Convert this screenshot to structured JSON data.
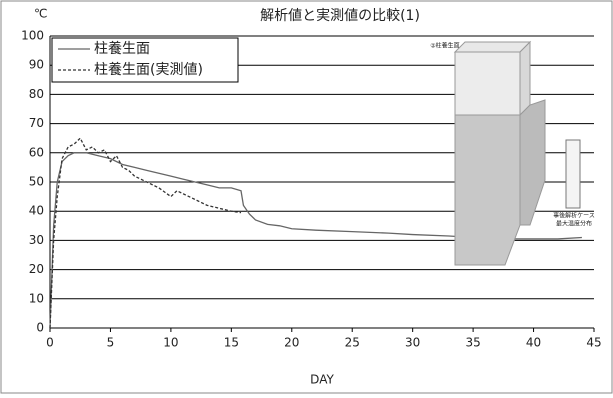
{
  "chart_data": {
    "type": "line",
    "title": "解析値と実測値の比較(1)",
    "ylabel": "℃",
    "xlabel": "DAY",
    "xlim": [
      0,
      45
    ],
    "xticks": [
      0,
      5,
      10,
      15,
      20,
      25,
      30,
      35,
      40,
      45
    ],
    "ylim": [
      0,
      100
    ],
    "yticks": [
      0,
      10,
      20,
      30,
      40,
      50,
      60,
      70,
      80,
      90,
      100
    ],
    "grid": true,
    "legend": "upper left",
    "annotations": [
      "②柱養生面",
      "事後解析ケース",
      "最大温度分布"
    ],
    "series": [
      {
        "name": "柱養生面",
        "color": "#666666",
        "dash": "solid",
        "x": [
          0,
          0.3,
          0.6,
          1,
          1.5,
          2,
          3,
          4,
          5,
          6,
          7,
          8,
          9,
          10,
          11,
          12,
          13,
          14,
          15,
          15.8,
          16,
          16.5,
          17,
          18,
          19,
          20,
          22,
          25,
          28,
          30,
          33,
          35,
          38,
          40,
          42,
          44
        ],
        "values": [
          0,
          35,
          50,
          57,
          59,
          60,
          60,
          59,
          58,
          56,
          55,
          54,
          53,
          52,
          51,
          50,
          49,
          48,
          48,
          47,
          42,
          39,
          37,
          35.5,
          35,
          34,
          33.5,
          33,
          32.5,
          32,
          31.5,
          31,
          30.5,
          30.5,
          30.5,
          31
        ]
      },
      {
        "name": "柱養生面(実測値)",
        "color": "#333333",
        "dash": "dashed",
        "x": [
          0,
          0.3,
          0.6,
          1,
          1.5,
          2,
          2.5,
          3,
          3.5,
          4,
          4.5,
          5,
          5.5,
          6,
          6.5,
          7,
          8,
          9,
          10,
          10.5,
          11,
          12,
          13,
          14,
          15,
          15.8
        ],
        "values": [
          0,
          30,
          45,
          58,
          62,
          63,
          65,
          61,
          62,
          60,
          61,
          57,
          59,
          55,
          54,
          52,
          50,
          48,
          45,
          47,
          46,
          44,
          42,
          41,
          40,
          39.5
        ]
      }
    ]
  }
}
